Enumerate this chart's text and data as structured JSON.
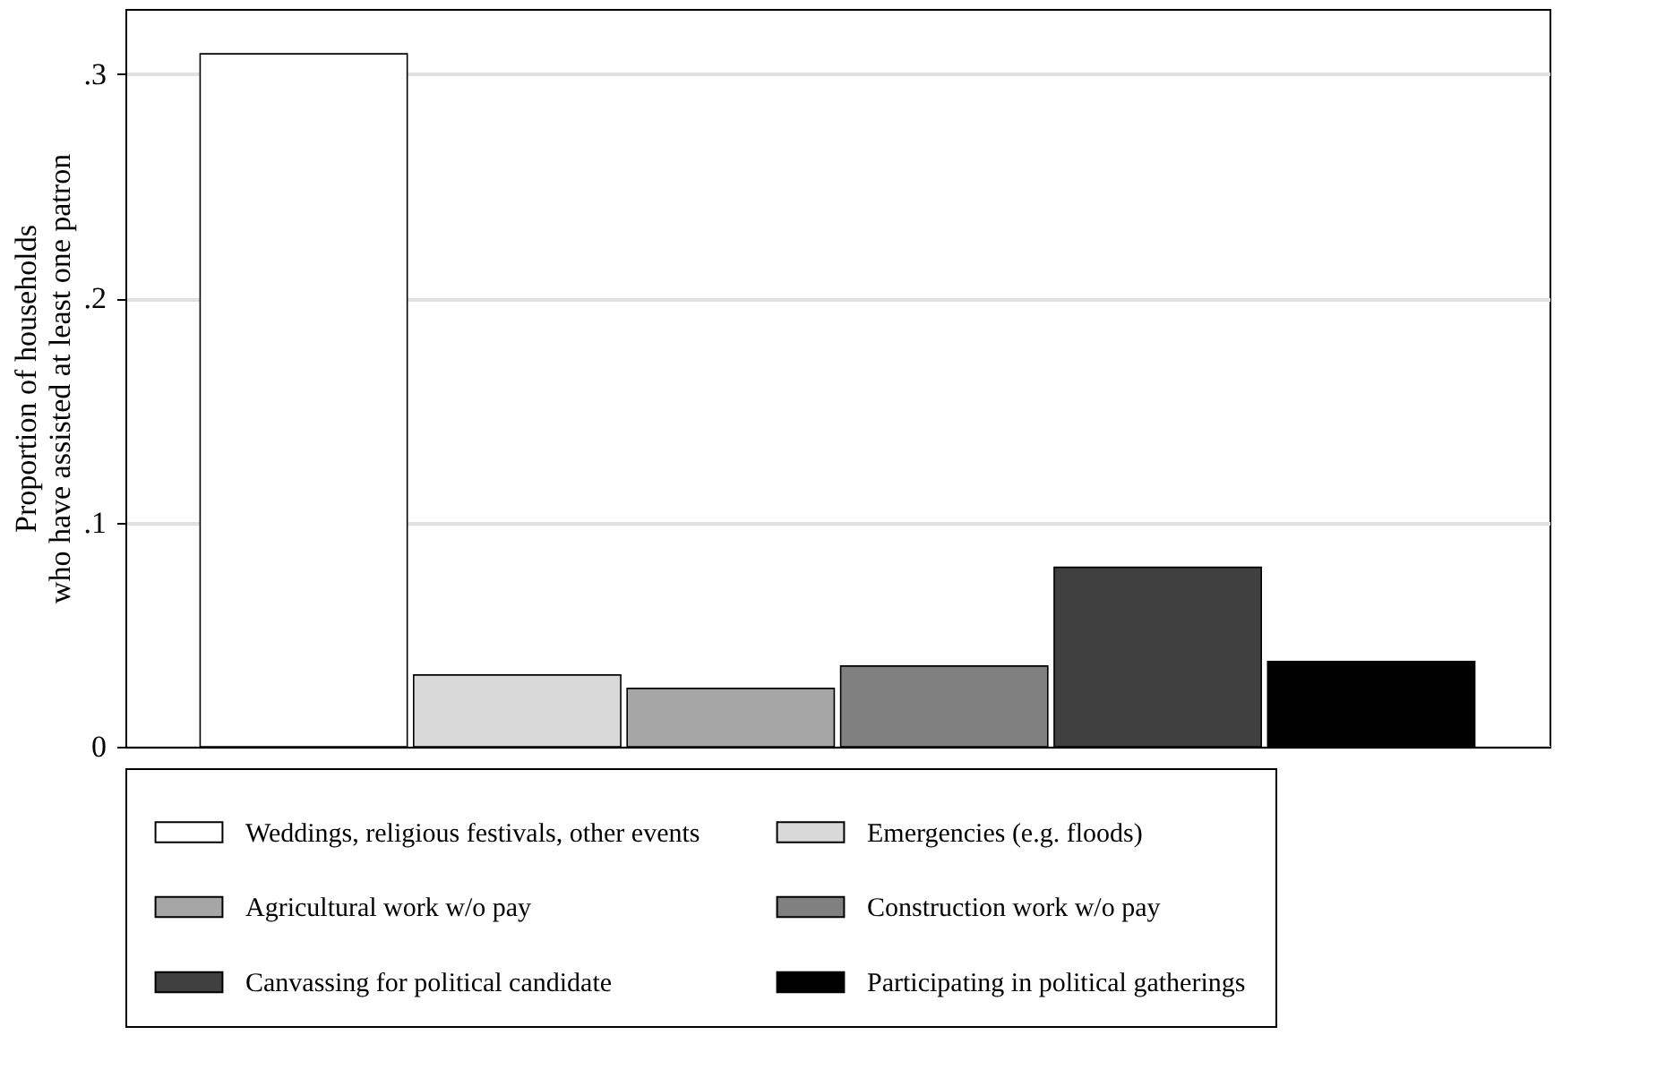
{
  "chart_data": {
    "type": "bar",
    "ylabel": "Proportion of households\nwho have assisted at least one patron",
    "categories": [
      null,
      null,
      null,
      null,
      null,
      null
    ],
    "series": [
      {
        "name": "Weddings, religious festivals, other events",
        "color": "#ffffff",
        "values": [
          0.309,
          null,
          null,
          null,
          null,
          null
        ]
      },
      {
        "name": "Emergencies (e.g. floods)",
        "color": "#d9d9d9",
        "values": [
          null,
          0.032,
          null,
          null,
          null,
          null
        ]
      },
      {
        "name": "Agricultural work w/o pay",
        "color": "#a6a6a6",
        "values": [
          null,
          null,
          0.026,
          null,
          null,
          null
        ]
      },
      {
        "name": "Construction work w/o pay",
        "color": "#808080",
        "values": [
          null,
          null,
          null,
          0.036,
          null,
          null
        ]
      },
      {
        "name": "Canvassing for political candidate",
        "color": "#404040",
        "values": [
          null,
          null,
          null,
          null,
          0.08,
          null
        ]
      },
      {
        "name": "Participating in political gatherings",
        "color": "#000000",
        "values": [
          null,
          null,
          null,
          null,
          null,
          0.038
        ]
      }
    ],
    "ylim": [
      0,
      0.329
    ],
    "yticks": [
      0,
      {
        "value": 0.1,
        "label": ".1"
      },
      {
        "value": 0.2,
        "label": ".2"
      },
      {
        "value": 0.3,
        "label": ".3"
      }
    ],
    "grid": "y",
    "legend": "bottom",
    "tick_labels": "y"
  }
}
